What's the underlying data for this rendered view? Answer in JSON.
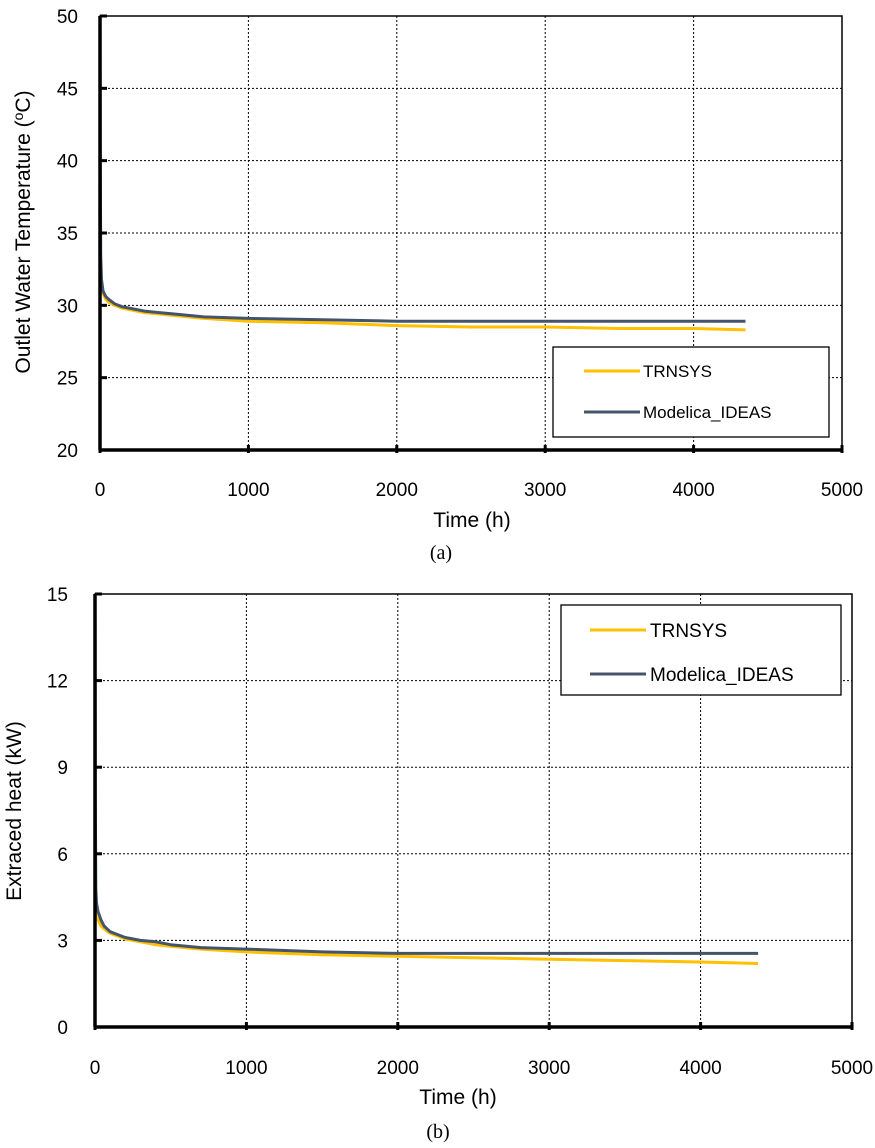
{
  "chart_data": [
    {
      "type": "line",
      "caption": "(a)",
      "xlabel": "Time (h)",
      "ylabel": "Outlet Water Temperature (oC)",
      "ylabel_base": "Outlet Water Temperature (",
      "ylabel_sup": "o",
      "ylabel_tail": "C)",
      "xlim": [
        0,
        5000
      ],
      "ylim": [
        20,
        50
      ],
      "xticks": [
        0,
        1000,
        2000,
        3000,
        4000,
        5000
      ],
      "yticks": [
        20,
        25,
        30,
        35,
        40,
        45,
        50
      ],
      "grid": true,
      "legend_position": "bottom-right",
      "series": [
        {
          "name": "TRNSYS",
          "color": "#FFC000",
          "x": [
            0,
            5,
            10,
            20,
            40,
            60,
            100,
            150,
            200,
            300,
            400,
            500,
            700,
            1000,
            1500,
            2000,
            2500,
            3000,
            3500,
            4000,
            4350
          ],
          "y": [
            33.0,
            31.8,
            31.2,
            30.8,
            30.4,
            30.2,
            30.0,
            29.8,
            29.7,
            29.5,
            29.4,
            29.3,
            29.1,
            28.9,
            28.8,
            28.6,
            28.5,
            28.5,
            28.4,
            28.4,
            28.3
          ]
        },
        {
          "name": "Modelica_IDEAS",
          "color": "#44546A",
          "x": [
            0,
            2,
            5,
            10,
            20,
            40,
            60,
            100,
            150,
            200,
            300,
            400,
            500,
            700,
            1000,
            1500,
            2000,
            2500,
            3000,
            3500,
            4000,
            4350
          ],
          "y": [
            50.0,
            40.0,
            33.5,
            31.8,
            31.0,
            30.6,
            30.4,
            30.1,
            29.9,
            29.8,
            29.6,
            29.5,
            29.4,
            29.2,
            29.1,
            29.0,
            28.9,
            28.9,
            28.9,
            28.9,
            28.9,
            28.9
          ]
        }
      ]
    },
    {
      "type": "line",
      "caption": "(b)",
      "xlabel": "Time (h)",
      "ylabel": "Extraced heat (kW)",
      "xlim": [
        0,
        5000
      ],
      "ylim": [
        0,
        15
      ],
      "xticks": [
        0,
        1000,
        2000,
        3000,
        4000,
        5000
      ],
      "xtick_labels": [
        "0",
        "1000",
        "2000",
        "3000",
        "4000",
        "5000"
      ],
      "yticks": [
        0,
        3,
        6,
        9,
        12,
        15
      ],
      "grid": true,
      "legend_position": "top-right",
      "series": [
        {
          "name": "TRNSYS",
          "color": "#FFC000",
          "x": [
            0,
            5,
            10,
            20,
            40,
            60,
            100,
            150,
            200,
            300,
            400,
            500,
            700,
            1000,
            1500,
            2000,
            2500,
            3000,
            3500,
            4000,
            4380
          ],
          "y": [
            4.1,
            3.9,
            3.8,
            3.7,
            3.5,
            3.4,
            3.25,
            3.15,
            3.05,
            2.95,
            2.85,
            2.8,
            2.7,
            2.6,
            2.5,
            2.45,
            2.4,
            2.35,
            2.3,
            2.25,
            2.2
          ]
        },
        {
          "name": "Modelica_IDEAS",
          "color": "#44546A",
          "x": [
            0,
            2,
            5,
            10,
            20,
            40,
            60,
            100,
            150,
            200,
            300,
            400,
            500,
            700,
            1000,
            1500,
            2000,
            2500,
            3000,
            3500,
            4000,
            4380
          ],
          "y": [
            15.0,
            8.0,
            4.8,
            4.3,
            4.0,
            3.7,
            3.5,
            3.3,
            3.2,
            3.1,
            3.0,
            2.95,
            2.85,
            2.75,
            2.7,
            2.6,
            2.55,
            2.55,
            2.55,
            2.55,
            2.55,
            2.55
          ]
        }
      ]
    }
  ]
}
